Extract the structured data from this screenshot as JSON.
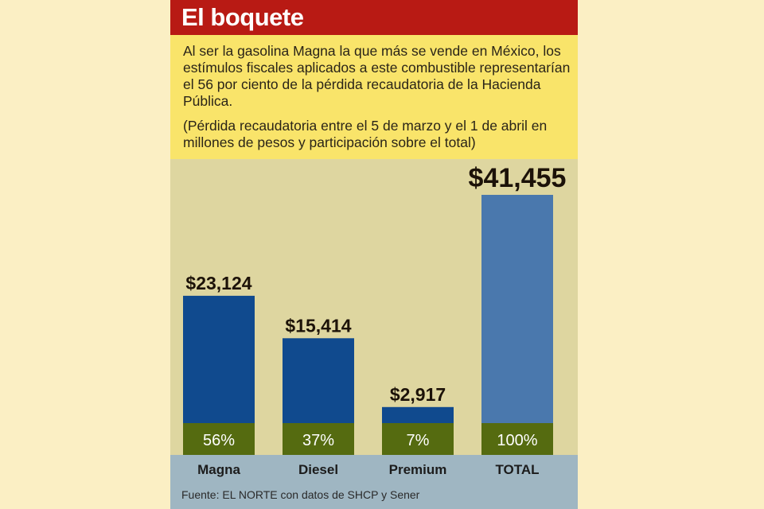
{
  "title": "El boquete",
  "description": "Al ser la gasolina Magna la que más se vende en México, los estímulos fiscales aplicados a este combustible representarían el 56 por ciento de la pérdida recaudatoria de la Hacienda Pública.",
  "note": "(Pérdida recaudatoria entre el 5 de marzo y el 1 de abril en millones de pesos y participación sobre el total)",
  "source": "Fuente: EL NORTE con datos de SHCP y Sener",
  "colors": {
    "title_bar": "#b81a14",
    "description_bg": "#f9e46a",
    "chart_bg": "#ded6a0",
    "bar_dark": "#104a8e",
    "bar_total": "#4a78ad",
    "pct_band": "#556b10",
    "category_band": "#9fb6c2"
  },
  "chart_data": {
    "type": "bar",
    "categories": [
      "Magna",
      "Diesel",
      "Premium",
      "TOTAL"
    ],
    "values": [
      23124,
      15414,
      2917,
      41455
    ],
    "value_labels": [
      "$23,124",
      "$15,414",
      "$2,917",
      "$41,455"
    ],
    "shares": [
      "56%",
      "37%",
      "7%",
      "100%"
    ],
    "units": "millones de pesos",
    "ylim": [
      0,
      41455
    ],
    "grid": false,
    "legend": "none"
  }
}
